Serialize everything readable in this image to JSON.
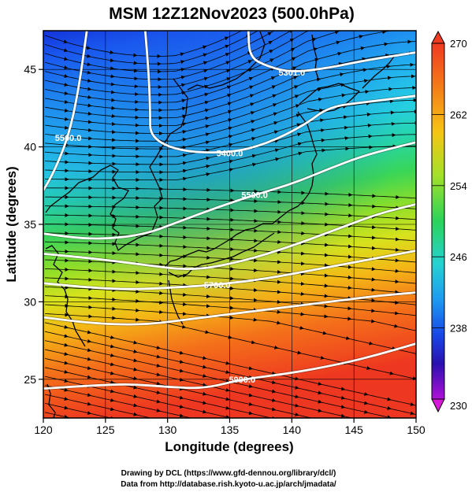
{
  "title": "MSM 12Z12Nov2023 (500.0hPa)",
  "xlabel": "Longitude (degrees)",
  "ylabel": "Latitude  (degrees)",
  "x_ticks": [
    "120",
    "125",
    "130",
    "135",
    "140",
    "145",
    "150"
  ],
  "y_ticks": [
    "25",
    "30",
    "35",
    "40",
    "45"
  ],
  "colorbar_ticks": [
    "270",
    "262",
    "254",
    "246",
    "238",
    "230"
  ],
  "colorbar_range": [
    230,
    270
  ],
  "credits": {
    "line1": "Drawing by DCL (https://www.gfd-dennou.org/library/dcl/)",
    "line2": "Data from http://database.rish.kyoto-u.ac.jp/arch/jmadata/"
  },
  "map_extent": {
    "lon": [
      120,
      150
    ],
    "lat": [
      22.5,
      47.5
    ]
  },
  "contour_labels": [
    "5301.0",
    "5400.0",
    "5500.0",
    "5500.0",
    "5700.0",
    "5900.0"
  ],
  "contours": [
    {
      "label_index": 0,
      "points": [
        [
          136.5,
          47.5
        ],
        [
          136.6,
          45.8
        ],
        [
          138,
          45.2
        ],
        [
          140,
          44.8
        ],
        [
          143,
          45.1
        ],
        [
          146,
          45.6
        ],
        [
          150,
          46.1
        ]
      ]
    },
    {
      "label_index": 1,
      "points": [
        [
          128.2,
          47.5
        ],
        [
          128.5,
          44.5
        ],
        [
          128.6,
          42.2
        ],
        [
          128.6,
          40.6
        ],
        [
          131,
          39.7
        ],
        [
          135,
          39.6
        ],
        [
          138,
          40.2
        ],
        [
          141,
          41.4
        ],
        [
          143,
          42.6
        ],
        [
          146,
          42.9
        ],
        [
          150,
          43.3
        ]
      ]
    },
    {
      "label_index": 2,
      "points": [
        [
          123.5,
          47.5
        ],
        [
          122.8,
          43.5
        ],
        [
          122,
          40.6
        ],
        [
          120.8,
          38.3
        ],
        [
          120,
          37.2
        ]
      ]
    },
    {
      "label_index": 3,
      "points": [
        [
          120,
          34.4
        ],
        [
          124,
          34.0
        ],
        [
          128,
          34.3
        ],
        [
          131,
          35.2
        ],
        [
          134,
          36.1
        ],
        [
          137,
          36.9
        ],
        [
          140,
          37.6
        ],
        [
          143,
          38.6
        ],
        [
          146,
          39.5
        ],
        [
          150,
          40.3
        ]
      ]
    },
    {
      "label_index": -1,
      "points": [
        [
          120,
          33.1
        ],
        [
          124,
          32.8
        ],
        [
          128,
          32.4
        ],
        [
          132,
          32.0
        ],
        [
          136,
          32.6
        ],
        [
          140,
          33.6
        ],
        [
          144,
          34.8
        ],
        [
          147,
          35.7
        ],
        [
          150,
          36.3
        ]
      ]
    },
    {
      "label_index": 4,
      "points": [
        [
          120,
          31.2
        ],
        [
          124,
          30.9
        ],
        [
          127,
          30.8
        ],
        [
          130,
          30.9
        ],
        [
          134,
          31.1
        ],
        [
          138,
          31.5
        ],
        [
          142,
          32.1
        ],
        [
          146,
          32.7
        ],
        [
          150,
          33.3
        ]
      ]
    },
    {
      "label_index": -1,
      "points": [
        [
          120,
          29.0
        ],
        [
          124,
          28.6
        ],
        [
          128,
          28.5
        ],
        [
          132,
          28.9
        ],
        [
          136,
          29.3
        ],
        [
          140,
          29.7
        ],
        [
          144,
          30.1
        ],
        [
          147,
          30.4
        ],
        [
          150,
          30.6
        ]
      ]
    },
    {
      "label_index": 5,
      "points": [
        [
          120,
          24.4
        ],
        [
          124,
          24.6
        ],
        [
          127,
          24.7
        ],
        [
          130,
          24.5
        ],
        [
          133,
          24.4
        ],
        [
          136,
          25.0
        ],
        [
          140,
          25.4
        ],
        [
          144,
          26.0
        ],
        [
          147,
          26.6
        ],
        [
          150,
          27.3
        ]
      ]
    }
  ]
}
